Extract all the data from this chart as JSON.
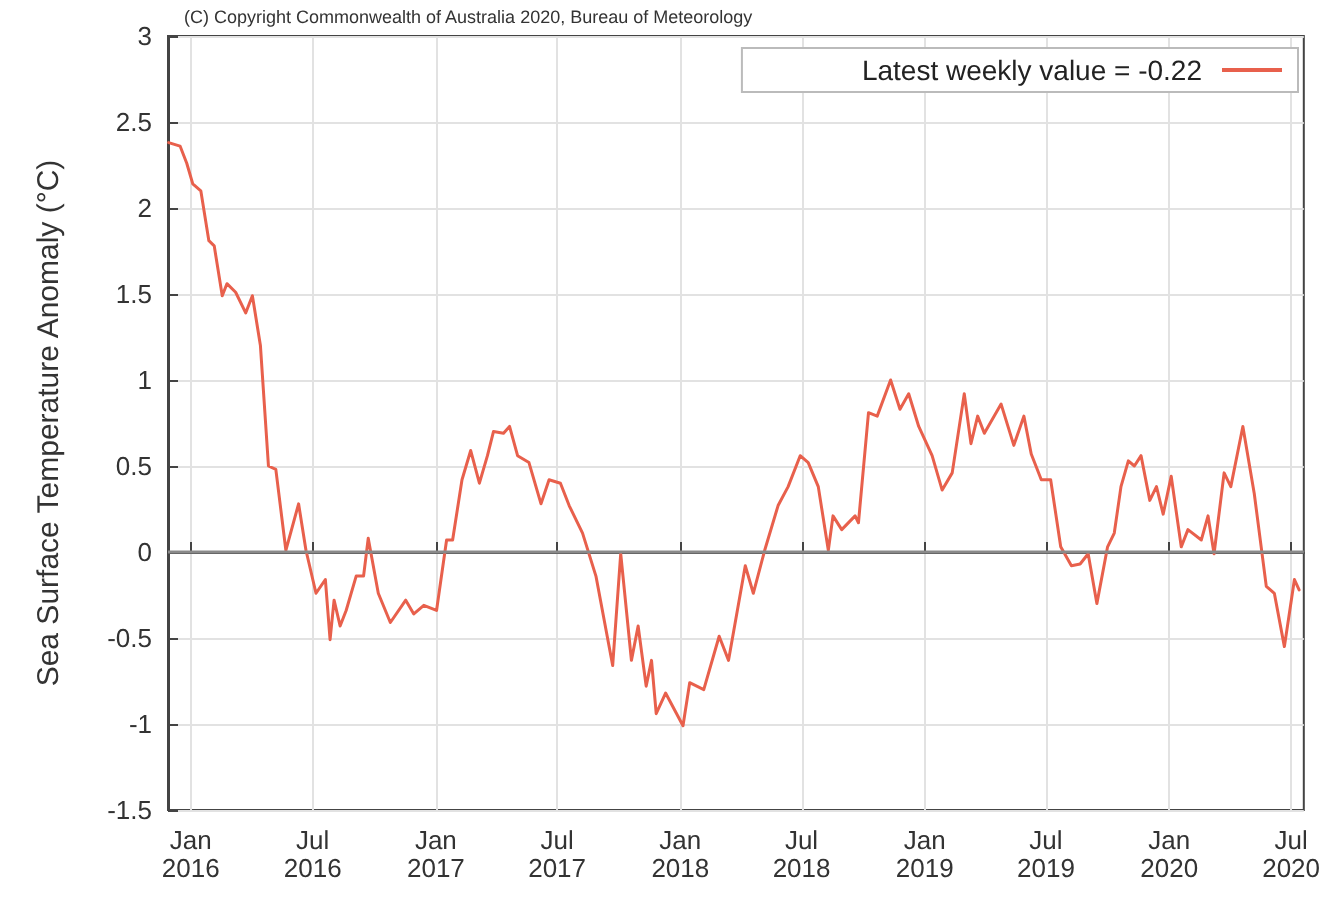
{
  "chart_data": {
    "type": "line",
    "ylabel": "Sea Surface Temperature Anomaly (°C)",
    "annotations": [
      "(C) Copyright Commonwealth of Australia 2020, Bureau of Meteorology"
    ],
    "xlim": [
      "2015-11-28",
      "2020-07-20"
    ],
    "xticks": [
      {
        "value": "2016-01-01",
        "label": "Jan\n2016"
      },
      {
        "value": "2016-07-01",
        "label": "Jul\n2016"
      },
      {
        "value": "2017-01-01",
        "label": "Jan\n2017"
      },
      {
        "value": "2017-07-01",
        "label": "Jul\n2017"
      },
      {
        "value": "2018-01-01",
        "label": "Jan\n2018"
      },
      {
        "value": "2018-07-01",
        "label": "Jul\n2018"
      },
      {
        "value": "2019-01-01",
        "label": "Jan\n2019"
      },
      {
        "value": "2019-07-01",
        "label": "Jul\n2019"
      },
      {
        "value": "2020-01-01",
        "label": "Jan\n2020"
      },
      {
        "value": "2020-07-01",
        "label": "Jul\n2020"
      }
    ],
    "ylim": [
      -1.5,
      3
    ],
    "yticks": [
      -1.5,
      -1,
      -0.5,
      0,
      0.5,
      1,
      1.5,
      2,
      2.5,
      3
    ],
    "grid": true,
    "legend": "top right",
    "marker": "none",
    "line_style": "solid",
    "ref_lines": [
      {
        "axis": "y",
        "value": 0,
        "label": null,
        "color": "#8a8a8a"
      }
    ],
    "series": [
      {
        "name": "Latest weekly value = -0.22",
        "color": "#e8604c",
        "x": [
          "2015-11-29",
          "2015-12-16",
          "2015-12-26",
          "2016-01-04",
          "2016-01-16",
          "2016-01-28",
          "2016-02-05",
          "2016-02-17",
          "2016-02-24",
          "2016-03-08",
          "2016-03-23",
          "2016-04-02",
          "2016-04-14",
          "2016-04-26",
          "2016-05-07",
          "2016-05-22",
          "2016-06-10",
          "2016-06-21",
          "2016-07-06",
          "2016-07-20",
          "2016-07-27",
          "2016-08-02",
          "2016-08-11",
          "2016-08-20",
          "2016-09-04",
          "2016-09-15",
          "2016-09-22",
          "2016-10-07",
          "2016-10-25",
          "2016-11-17",
          "2016-11-29",
          "2016-12-14",
          "2017-01-02",
          "2017-01-17",
          "2017-01-26",
          "2017-02-09",
          "2017-02-22",
          "2017-03-07",
          "2017-03-19",
          "2017-03-28",
          "2017-04-12",
          "2017-04-21",
          "2017-05-03",
          "2017-05-20",
          "2017-06-07",
          "2017-06-19",
          "2017-07-06",
          "2017-07-19",
          "2017-08-08",
          "2017-08-28",
          "2017-09-22",
          "2017-10-04",
          "2017-10-20",
          "2017-10-30",
          "2017-11-11",
          "2017-11-19",
          "2017-11-26",
          "2017-12-10",
          "2018-01-05",
          "2018-01-15",
          "2018-02-05",
          "2018-02-28",
          "2018-03-14",
          "2018-04-08",
          "2018-04-20",
          "2018-05-07",
          "2018-05-27",
          "2018-06-11",
          "2018-06-29",
          "2018-07-11",
          "2018-07-26",
          "2018-08-10",
          "2018-08-17",
          "2018-08-30",
          "2018-09-19",
          "2018-09-24",
          "2018-10-09",
          "2018-10-22",
          "2018-11-11",
          "2018-11-25",
          "2018-12-08",
          "2018-12-23",
          "2019-01-12",
          "2019-01-27",
          "2019-02-11",
          "2019-03-01",
          "2019-03-11",
          "2019-03-21",
          "2019-03-31",
          "2019-04-25",
          "2019-05-14",
          "2019-05-29",
          "2019-06-09",
          "2019-06-24",
          "2019-07-08",
          "2019-07-23",
          "2019-08-08",
          "2019-08-21",
          "2019-09-02",
          "2019-09-15",
          "2019-10-01",
          "2019-10-11",
          "2019-10-21",
          "2019-11-01",
          "2019-11-10",
          "2019-11-20",
          "2019-12-03",
          "2019-12-13",
          "2019-12-23",
          "2020-01-04",
          "2020-01-19",
          "2020-01-29",
          "2020-02-18",
          "2020-02-28",
          "2020-03-08",
          "2020-03-23",
          "2020-04-02",
          "2020-04-20",
          "2020-05-07",
          "2020-05-25",
          "2020-06-06",
          "2020-06-21",
          "2020-07-06",
          "2020-07-13"
        ],
        "values": [
          2.38,
          2.36,
          2.26,
          2.14,
          2.1,
          1.81,
          1.78,
          1.49,
          1.56,
          1.51,
          1.39,
          1.49,
          1.2,
          0.5,
          0.48,
          0.01,
          0.28,
          0.01,
          -0.24,
          -0.16,
          -0.51,
          -0.28,
          -0.43,
          -0.34,
          -0.14,
          -0.14,
          0.08,
          -0.24,
          -0.41,
          -0.28,
          -0.36,
          -0.31,
          -0.34,
          0.07,
          0.07,
          0.42,
          0.59,
          0.4,
          0.56,
          0.7,
          0.69,
          0.73,
          0.56,
          0.52,
          0.28,
          0.42,
          0.4,
          0.27,
          0.11,
          -0.14,
          -0.66,
          -0.01,
          -0.63,
          -0.43,
          -0.78,
          -0.63,
          -0.94,
          -0.82,
          -1.01,
          -0.76,
          -0.8,
          -0.49,
          -0.63,
          -0.08,
          -0.24,
          0.01,
          0.27,
          0.38,
          0.56,
          0.52,
          0.38,
          0.01,
          0.21,
          0.13,
          0.21,
          0.17,
          0.81,
          0.79,
          1.0,
          0.83,
          0.92,
          0.73,
          0.56,
          0.36,
          0.46,
          0.92,
          0.63,
          0.79,
          0.69,
          0.86,
          0.62,
          0.79,
          0.57,
          0.42,
          0.42,
          0.03,
          -0.08,
          -0.07,
          -0.01,
          -0.3,
          0.03,
          0.11,
          0.38,
          0.53,
          0.5,
          0.56,
          0.3,
          0.38,
          0.22,
          0.44,
          0.03,
          0.13,
          0.07,
          0.21,
          -0.01,
          0.46,
          0.38,
          0.73,
          0.34,
          -0.2,
          -0.24,
          -0.55,
          -0.16,
          -0.22
        ]
      }
    ]
  }
}
